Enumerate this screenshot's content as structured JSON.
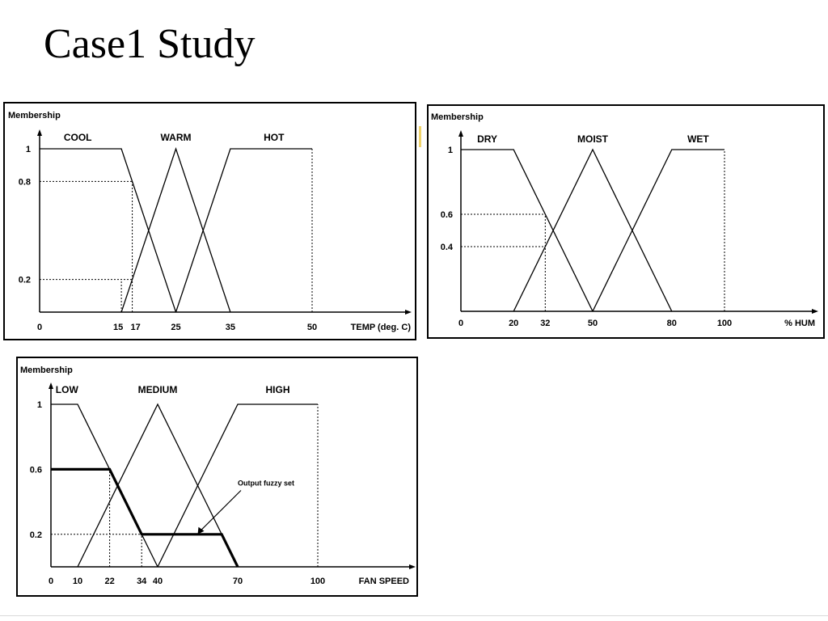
{
  "slide": {
    "title": "Case1 Study"
  },
  "colors": {
    "ink": "#000000",
    "accent": "#f0d36a"
  },
  "charts": [
    {
      "id": "temp",
      "type": "membership",
      "ylabel": "Membership",
      "xlabel": "TEMP (deg. C)",
      "xlim": [
        0,
        50
      ],
      "ylim": [
        0,
        1
      ],
      "xticks": [
        "0",
        "15",
        "17",
        "25",
        "35",
        "50"
      ],
      "xtick_values": [
        0,
        15,
        17,
        25,
        35,
        50
      ],
      "yticks": [
        "0.2",
        "0.8",
        "1"
      ],
      "ytick_values": [
        0.2,
        0.8,
        1
      ],
      "sets": [
        {
          "name": "COOL",
          "label_x": 7,
          "points": [
            [
              0,
              1
            ],
            [
              15,
              1
            ],
            [
              25,
              0
            ]
          ]
        },
        {
          "name": "WARM",
          "label_x": 25,
          "points": [
            [
              15,
              0
            ],
            [
              25,
              1
            ],
            [
              35,
              0
            ]
          ]
        },
        {
          "name": "HOT",
          "label_x": 43,
          "points": [
            [
              25,
              0
            ],
            [
              35,
              1
            ],
            [
              50,
              1
            ]
          ]
        }
      ],
      "guides": [
        {
          "type": "h",
          "y": 0.8,
          "x0": 0,
          "x1": 17
        },
        {
          "type": "v",
          "x": 17,
          "y0": 0,
          "y1": 0.8
        },
        {
          "type": "h",
          "y": 0.2,
          "x0": 0,
          "x1": 17
        },
        {
          "type": "v",
          "x": 15,
          "y0": 0,
          "y1": 0.2
        },
        {
          "type": "v",
          "x": 50,
          "y0": 0,
          "y1": 1
        }
      ]
    },
    {
      "id": "humidity",
      "type": "membership",
      "ylabel": "Membership",
      "xlabel": "% HUM",
      "xlim": [
        0,
        100
      ],
      "ylim": [
        0,
        1
      ],
      "xticks": [
        "0",
        "20",
        "32",
        "50",
        "80",
        "100"
      ],
      "xtick_values": [
        0,
        20,
        32,
        50,
        80,
        100
      ],
      "yticks": [
        "0.4",
        "0.6",
        "1"
      ],
      "ytick_values": [
        0.4,
        0.6,
        1
      ],
      "sets": [
        {
          "name": "DRY",
          "label_x": 10,
          "points": [
            [
              0,
              1
            ],
            [
              20,
              1
            ],
            [
              50,
              0
            ]
          ]
        },
        {
          "name": "MOIST",
          "label_x": 50,
          "points": [
            [
              20,
              0
            ],
            [
              50,
              1
            ],
            [
              80,
              0
            ]
          ]
        },
        {
          "name": "WET",
          "label_x": 90,
          "points": [
            [
              50,
              0
            ],
            [
              80,
              1
            ],
            [
              100,
              1
            ]
          ]
        }
      ],
      "guides": [
        {
          "type": "h",
          "y": 0.6,
          "x0": 0,
          "x1": 32
        },
        {
          "type": "h",
          "y": 0.4,
          "x0": 0,
          "x1": 32
        },
        {
          "type": "v",
          "x": 32,
          "y0": 0,
          "y1": 0.6
        },
        {
          "type": "v",
          "x": 100,
          "y0": 0,
          "y1": 1
        }
      ]
    },
    {
      "id": "fan",
      "type": "membership",
      "ylabel": "Membership",
      "xlabel": "FAN SPEED",
      "xlim": [
        0,
        100
      ],
      "ylim": [
        0,
        1
      ],
      "xticks": [
        "0",
        "10",
        "22",
        "34",
        "40",
        "70",
        "100"
      ],
      "xtick_values": [
        0,
        10,
        22,
        34,
        40,
        70,
        100
      ],
      "yticks": [
        "0.2",
        "0.6",
        "1"
      ],
      "ytick_values": [
        0.2,
        0.6,
        1
      ],
      "sets": [
        {
          "name": "LOW",
          "label_x": 6,
          "points": [
            [
              0,
              1
            ],
            [
              10,
              1
            ],
            [
              40,
              0
            ]
          ]
        },
        {
          "name": "MEDIUM",
          "label_x": 40,
          "points": [
            [
              10,
              0
            ],
            [
              40,
              1
            ],
            [
              70,
              0
            ]
          ]
        },
        {
          "name": "HIGH",
          "label_x": 85,
          "points": [
            [
              40,
              0
            ],
            [
              70,
              1
            ],
            [
              100,
              1
            ]
          ]
        }
      ],
      "output_set": {
        "points": [
          [
            0,
            0.6
          ],
          [
            22,
            0.6
          ],
          [
            34,
            0.2
          ],
          [
            64,
            0.2
          ],
          [
            70,
            0
          ]
        ]
      },
      "annotation": {
        "text": "Output fuzzy set",
        "text_at": [
          70,
          0.5
        ],
        "arrow_to": [
          55,
          0.2
        ]
      },
      "guides": [
        {
          "type": "h",
          "y": 0.2,
          "x0": 0,
          "x1": 34
        },
        {
          "type": "v",
          "x": 22,
          "y0": 0,
          "y1": 0.6
        },
        {
          "type": "v",
          "x": 34,
          "y0": 0,
          "y1": 0.2
        },
        {
          "type": "v",
          "x": 100,
          "y0": 0,
          "y1": 1
        }
      ]
    }
  ]
}
